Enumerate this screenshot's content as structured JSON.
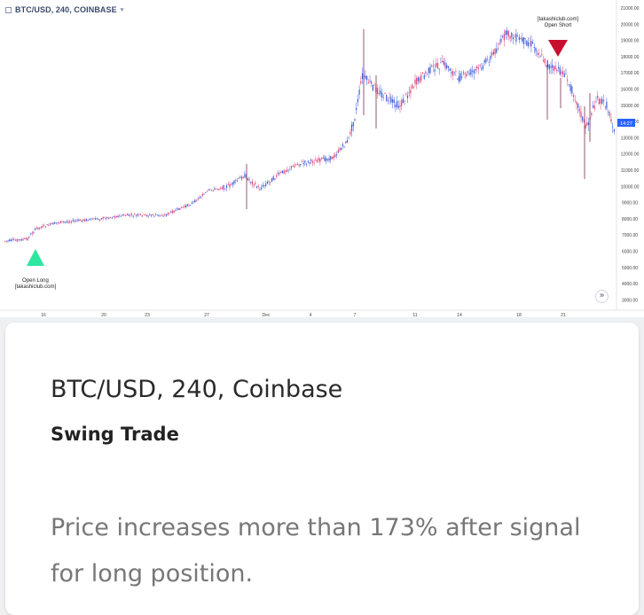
{
  "chart": {
    "symbol_label": "BTC/USD, 240, COINBASE",
    "price_axis": [
      "21000.00",
      "20000.00",
      "19000.00",
      "18000.00",
      "17000.00",
      "16000.00",
      "15000.00",
      "14000.00",
      "13000.00",
      "12000.00",
      "11000.00",
      "10000.00",
      "9000.00",
      "8000.00",
      "7000.00",
      "6000.00",
      "5000.00",
      "4000.00",
      "3000.00"
    ],
    "current_price_badge": "14:27",
    "time_axis": [
      "16",
      "20",
      "23",
      "27",
      "Dec",
      "4",
      "7",
      "11",
      "14",
      "18",
      "21"
    ],
    "long_annotation": {
      "line1": "Open Long",
      "line2": "[takashiclub.com]"
    },
    "short_annotation": {
      "line1": "[takashiclub.com]",
      "line2": "Open Short"
    },
    "scroll_icon": "double-chevron-right-icon",
    "colors": {
      "up": "#3b5bdb",
      "down": "#e0447a",
      "long_marker": "#2ee6a0",
      "short_marker": "#c8102e",
      "badge": "#2962ff"
    }
  },
  "card": {
    "title": "BTC/USD, 240, Coinbase",
    "subtitle": "Swing Trade",
    "description": "Price increases more than 173% after signal for long position."
  }
}
